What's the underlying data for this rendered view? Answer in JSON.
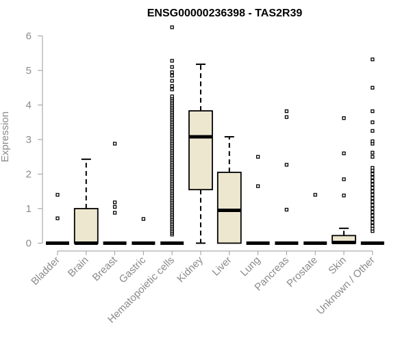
{
  "chart_data": {
    "type": "box",
    "title": "ENSG00000236398 - TAS2R39",
    "ylabel": "Expression",
    "xlabel": "",
    "ylim": [
      0,
      6.2
    ],
    "yticks": [
      0,
      1,
      2,
      3,
      4,
      5,
      6
    ],
    "grid": false,
    "box_fill": "#ede7cf",
    "categories": [
      "Bladder",
      "Brain",
      "Breast",
      "Gastric",
      "Hematopoietic cells",
      "Kidney",
      "Liver",
      "Lung",
      "Pancreas",
      "Prostate",
      "Skin",
      "Unknown / Other"
    ],
    "boxes": [
      {
        "category": "Bladder",
        "min": 0,
        "q1": 0,
        "median": 0,
        "q3": 0,
        "max": 0,
        "outliers": [
          0.72,
          1.4
        ]
      },
      {
        "category": "Brain",
        "min": 0,
        "q1": 0,
        "median": 0,
        "q3": 1.0,
        "max": 2.43,
        "outliers": []
      },
      {
        "category": "Breast",
        "min": 0,
        "q1": 0,
        "median": 0,
        "q3": 0,
        "max": 0,
        "outliers": [
          0.88,
          1.05,
          1.18,
          2.88
        ]
      },
      {
        "category": "Gastric",
        "min": 0,
        "q1": 0,
        "median": 0,
        "q3": 0,
        "max": 0,
        "outliers": [
          0.7
        ]
      },
      {
        "category": "Hematopoietic cells",
        "min": 0,
        "q1": 0,
        "median": 0,
        "q3": 0,
        "max": 0,
        "outliers": [
          0.25,
          0.3,
          0.35,
          0.4,
          0.45,
          0.5,
          0.55,
          0.6,
          0.65,
          0.7,
          0.75,
          0.8,
          0.85,
          0.9,
          0.95,
          1.0,
          1.05,
          1.1,
          1.15,
          1.2,
          1.25,
          1.3,
          1.35,
          1.4,
          1.45,
          1.5,
          1.55,
          1.6,
          1.65,
          1.7,
          1.75,
          1.8,
          1.85,
          1.9,
          1.95,
          2.0,
          2.05,
          2.1,
          2.15,
          2.2,
          2.25,
          2.3,
          2.35,
          2.4,
          2.45,
          2.5,
          2.55,
          2.6,
          2.65,
          2.7,
          2.75,
          2.8,
          2.85,
          2.9,
          2.95,
          3.0,
          3.05,
          3.1,
          3.15,
          3.2,
          3.25,
          3.3,
          3.35,
          3.4,
          3.45,
          3.5,
          3.55,
          3.6,
          3.65,
          3.7,
          3.75,
          3.8,
          3.85,
          3.9,
          3.95,
          4.0,
          4.05,
          4.1,
          4.15,
          4.2,
          4.25,
          4.45,
          4.55,
          4.7,
          4.85,
          4.95,
          5.1,
          5.28,
          6.25
        ]
      },
      {
        "category": "Kidney",
        "min": 0,
        "q1": 1.55,
        "median": 3.08,
        "q3": 3.83,
        "max": 5.18,
        "outliers": []
      },
      {
        "category": "Liver",
        "min": 0,
        "q1": 0,
        "median": 0.95,
        "q3": 2.05,
        "max": 3.08,
        "outliers": []
      },
      {
        "category": "Lung",
        "min": 0,
        "q1": 0,
        "median": 0,
        "q3": 0,
        "max": 0,
        "outliers": [
          1.65,
          2.5
        ]
      },
      {
        "category": "Pancreas",
        "min": 0,
        "q1": 0,
        "median": 0,
        "q3": 0,
        "max": 0,
        "outliers": [
          0.97,
          2.27,
          3.65,
          3.82
        ]
      },
      {
        "category": "Prostate",
        "min": 0,
        "q1": 0,
        "median": 0,
        "q3": 0,
        "max": 0,
        "outliers": [
          1.4
        ]
      },
      {
        "category": "Skin",
        "min": 0,
        "q1": 0,
        "median": 0.02,
        "q3": 0.22,
        "max": 0.43,
        "outliers": [
          1.38,
          1.85,
          2.6,
          3.62
        ]
      },
      {
        "category": "Unknown / Other",
        "min": 0,
        "q1": 0,
        "median": 0,
        "q3": 0,
        "max": 0,
        "outliers": [
          0.35,
          0.42,
          0.5,
          0.6,
          0.7,
          0.8,
          0.9,
          1.0,
          1.1,
          1.2,
          1.3,
          1.4,
          1.5,
          1.6,
          1.7,
          1.8,
          1.9,
          2.0,
          2.1,
          2.18,
          2.5,
          2.62,
          2.88,
          2.95,
          3.25,
          3.5,
          3.82,
          4.5,
          5.32
        ]
      }
    ]
  }
}
